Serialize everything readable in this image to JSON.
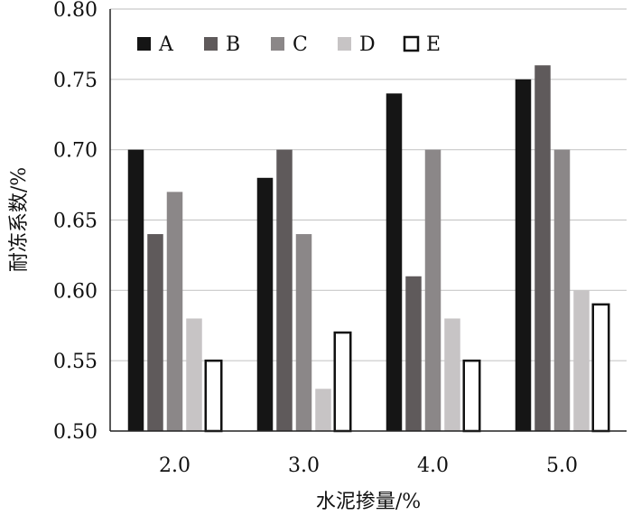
{
  "chart_data": {
    "type": "bar",
    "title": "",
    "xlabel": "水泥掺量/%",
    "ylabel": "耐冻系数/%",
    "categories": [
      "2.0",
      "3.0",
      "4.0",
      "5.0"
    ],
    "ylim": [
      0.5,
      0.8
    ],
    "yticks": [
      "0.50",
      "0.55",
      "0.60",
      "0.65",
      "0.70",
      "0.75",
      "0.80"
    ],
    "grid": true,
    "legend_position": "top",
    "series": [
      {
        "name": "A",
        "color": "#151515",
        "values": [
          0.7,
          0.68,
          0.74,
          0.75
        ]
      },
      {
        "name": "B",
        "color": "#5f5a5b",
        "values": [
          0.64,
          0.7,
          0.61,
          0.76
        ]
      },
      {
        "name": "C",
        "color": "#8b8788",
        "values": [
          0.67,
          0.64,
          0.7,
          0.7
        ]
      },
      {
        "name": "D",
        "color": "#c7c4c5",
        "values": [
          0.58,
          0.53,
          0.58,
          0.6
        ]
      },
      {
        "name": "E",
        "color": "#ffffff",
        "values": [
          0.55,
          0.57,
          0.55,
          0.59
        ]
      }
    ]
  }
}
